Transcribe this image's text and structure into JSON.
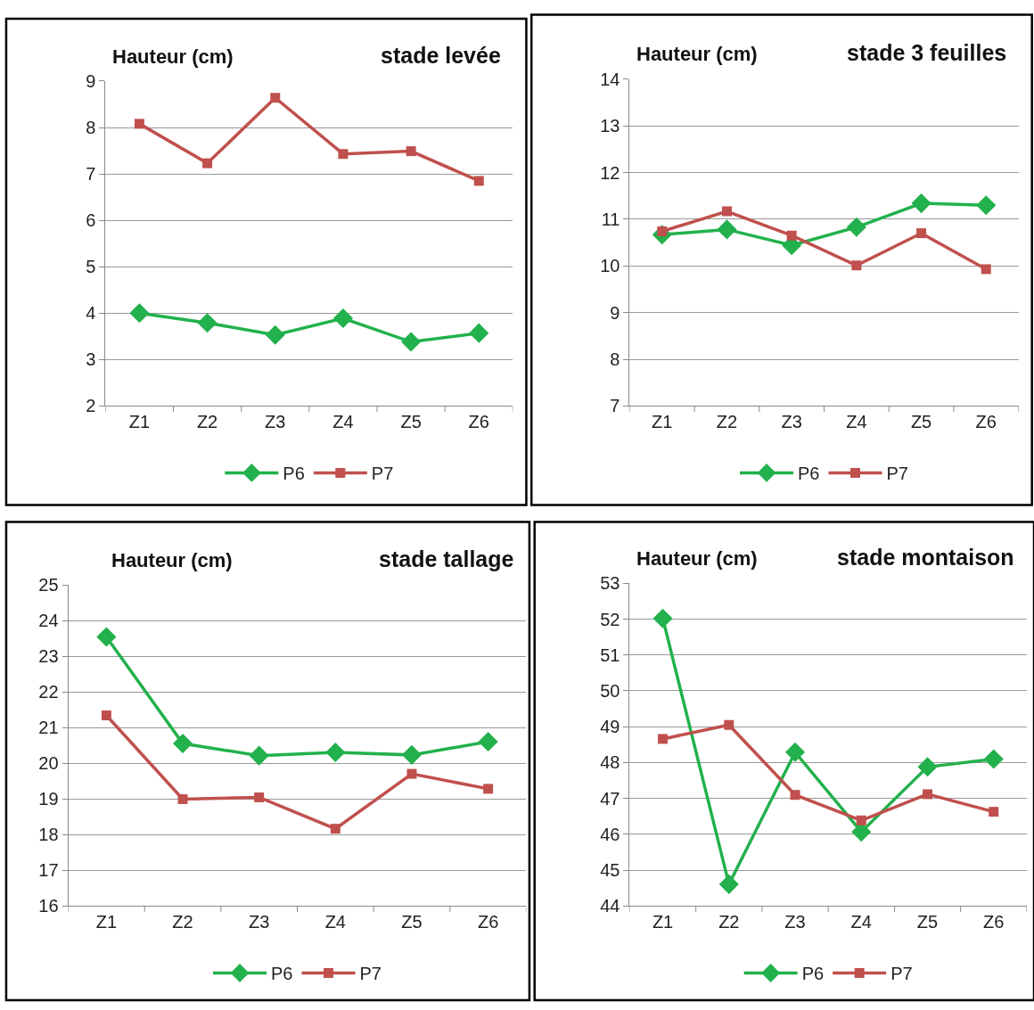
{
  "chart_data": [
    {
      "type": "line",
      "title": "stade levée",
      "ylabel": "Hauteur (cm)",
      "categories": [
        "Z1",
        "Z2",
        "Z3",
        "Z4",
        "Z5",
        "Z6"
      ],
      "ylim": [
        2,
        9
      ],
      "yticks": [
        2,
        3,
        4,
        5,
        6,
        7,
        8,
        9
      ],
      "grid": "y",
      "legend": "bottom",
      "series": [
        {
          "name": "P6",
          "color": "#22b14c",
          "marker": "diamond",
          "values": [
            4.0,
            3.79,
            3.53,
            3.89,
            3.38,
            3.57
          ]
        },
        {
          "name": "P7",
          "color": "#c0504d",
          "marker": "square",
          "values": [
            8.08,
            7.23,
            8.64,
            7.43,
            7.49,
            6.85
          ]
        }
      ]
    },
    {
      "type": "line",
      "title": "stade 3 feuilles",
      "ylabel": "Hauteur (cm)",
      "categories": [
        "Z1",
        "Z2",
        "Z3",
        "Z4",
        "Z5",
        "Z6"
      ],
      "ylim": [
        7,
        14
      ],
      "yticks": [
        7,
        8,
        9,
        10,
        11,
        12,
        13,
        14
      ],
      "grid": "y",
      "legend": "bottom",
      "series": [
        {
          "name": "P6",
          "color": "#22b14c",
          "marker": "diamond",
          "values": [
            10.67,
            10.78,
            10.44,
            10.83,
            11.34,
            11.3
          ]
        },
        {
          "name": "P7",
          "color": "#c0504d",
          "marker": "square",
          "values": [
            10.74,
            11.17,
            10.65,
            10.01,
            10.7,
            9.93
          ]
        }
      ]
    },
    {
      "type": "line",
      "title": "stade tallage",
      "ylabel": "Hauteur (cm)",
      "categories": [
        "Z1",
        "Z2",
        "Z3",
        "Z4",
        "Z5",
        "Z6"
      ],
      "ylim": [
        16,
        25
      ],
      "yticks": [
        16,
        17,
        18,
        19,
        20,
        21,
        22,
        23,
        24,
        25
      ],
      "grid": "y",
      "legend": "bottom",
      "series": [
        {
          "name": "P6",
          "color": "#22b14c",
          "marker": "diamond",
          "values": [
            23.55,
            20.56,
            20.22,
            20.31,
            20.24,
            20.61
          ]
        },
        {
          "name": "P7",
          "color": "#c0504d",
          "marker": "square",
          "values": [
            21.35,
            19.0,
            19.05,
            18.17,
            19.71,
            19.29
          ]
        }
      ]
    },
    {
      "type": "line",
      "title": "stade montaison",
      "ylabel": "Hauteur (cm)",
      "categories": [
        "Z1",
        "Z2",
        "Z3",
        "Z4",
        "Z5",
        "Z6"
      ],
      "ylim": [
        44,
        53
      ],
      "yticks": [
        44,
        45,
        46,
        47,
        48,
        49,
        50,
        51,
        52,
        53
      ],
      "grid": "y",
      "legend": "bottom",
      "series": [
        {
          "name": "P6",
          "color": "#22b14c",
          "marker": "diamond",
          "values": [
            52.02,
            44.61,
            48.29,
            46.07,
            47.88,
            48.1
          ]
        },
        {
          "name": "P7",
          "color": "#c0504d",
          "marker": "square",
          "values": [
            48.66,
            49.05,
            47.1,
            46.39,
            47.12,
            46.63
          ]
        }
      ]
    }
  ]
}
